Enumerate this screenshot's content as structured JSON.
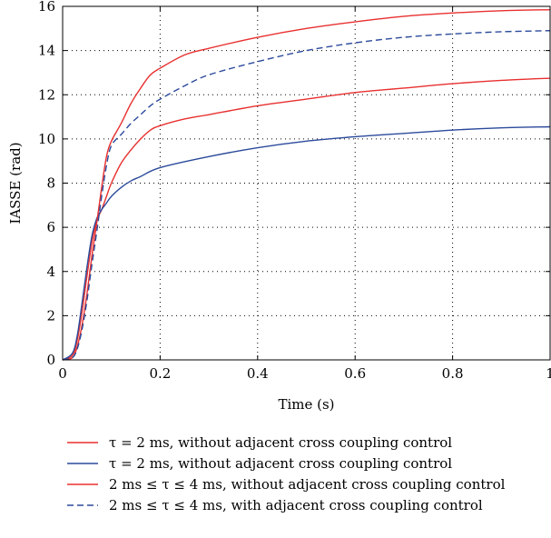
{
  "chart_data": {
    "type": "line",
    "xlabel": "Time (s)",
    "ylabel": "IASSE (rad)",
    "xlim": [
      0,
      1
    ],
    "ylim": [
      0,
      16
    ],
    "xticks": [
      0,
      0.2,
      0.4,
      0.6,
      0.8,
      1
    ],
    "xtick_labels": [
      "0",
      "0.2",
      "0.4",
      "0.6",
      "0.8",
      "1"
    ],
    "yticks": [
      0,
      2,
      4,
      6,
      8,
      10,
      12,
      14,
      16
    ],
    "ytick_labels": [
      "0",
      "2",
      "4",
      "6",
      "8",
      "10",
      "12",
      "14",
      "16"
    ],
    "grid": true,
    "legend_placement": "bottom",
    "series": [
      {
        "name": "τ = 2 ms, without adjacent cross coupling control",
        "color": "#e8302f",
        "dash": "solid",
        "x": [
          0,
          0.02,
          0.03,
          0.04,
          0.05,
          0.06,
          0.07,
          0.08,
          0.09,
          0.1,
          0.12,
          0.14,
          0.16,
          0.18,
          0.2,
          0.25,
          0.3,
          0.4,
          0.5,
          0.6,
          0.7,
          0.8,
          0.9,
          1.0
        ],
        "y": [
          0,
          0.2,
          0.9,
          2.2,
          3.8,
          5.3,
          6.3,
          6.8,
          7.4,
          8.0,
          8.9,
          9.5,
          10.0,
          10.4,
          10.6,
          10.9,
          11.1,
          11.5,
          11.8,
          12.1,
          12.3,
          12.5,
          12.65,
          12.75
        ]
      },
      {
        "name": "τ = 2 ms, without adjacent cross coupling control",
        "color": "#2b4a9b",
        "dash": "solid",
        "x": [
          0,
          0.02,
          0.03,
          0.04,
          0.05,
          0.06,
          0.07,
          0.08,
          0.09,
          0.1,
          0.12,
          0.14,
          0.16,
          0.2,
          0.3,
          0.4,
          0.5,
          0.6,
          0.7,
          0.8,
          0.9,
          1.0
        ],
        "y": [
          0,
          0.3,
          1.1,
          2.6,
          4.2,
          5.6,
          6.4,
          6.8,
          7.1,
          7.4,
          7.8,
          8.1,
          8.3,
          8.7,
          9.2,
          9.6,
          9.9,
          10.1,
          10.25,
          10.4,
          10.5,
          10.55
        ]
      },
      {
        "name": "2 ms ≤ τ ≤ 4 ms, without adjacent cross coupling control",
        "color": "#e8302f",
        "dash": "solid",
        "x": [
          0,
          0.02,
          0.03,
          0.04,
          0.05,
          0.06,
          0.07,
          0.08,
          0.09,
          0.1,
          0.12,
          0.14,
          0.16,
          0.18,
          0.2,
          0.25,
          0.3,
          0.4,
          0.5,
          0.6,
          0.7,
          0.8,
          0.9,
          1.0
        ],
        "y": [
          0,
          0.1,
          0.6,
          1.6,
          3.0,
          4.7,
          6.2,
          7.8,
          9.2,
          9.9,
          10.7,
          11.6,
          12.3,
          12.9,
          13.2,
          13.8,
          14.1,
          14.6,
          15.0,
          15.3,
          15.55,
          15.7,
          15.8,
          15.85
        ]
      },
      {
        "name": "2 ms  ≤ τ ≤ 4 ms, with adjacent cross coupling control",
        "color": "#2b4a9b",
        "dash": "dashed",
        "x": [
          0,
          0.02,
          0.03,
          0.04,
          0.05,
          0.06,
          0.07,
          0.08,
          0.09,
          0.1,
          0.12,
          0.14,
          0.16,
          0.18,
          0.2,
          0.25,
          0.3,
          0.4,
          0.5,
          0.6,
          0.7,
          0.8,
          0.9,
          1.0
        ],
        "y": [
          0,
          0.1,
          0.5,
          1.4,
          2.7,
          4.3,
          5.8,
          7.4,
          8.8,
          9.7,
          10.2,
          10.7,
          11.1,
          11.5,
          11.8,
          12.4,
          12.9,
          13.5,
          14.0,
          14.35,
          14.6,
          14.75,
          14.85,
          14.9
        ]
      }
    ]
  }
}
